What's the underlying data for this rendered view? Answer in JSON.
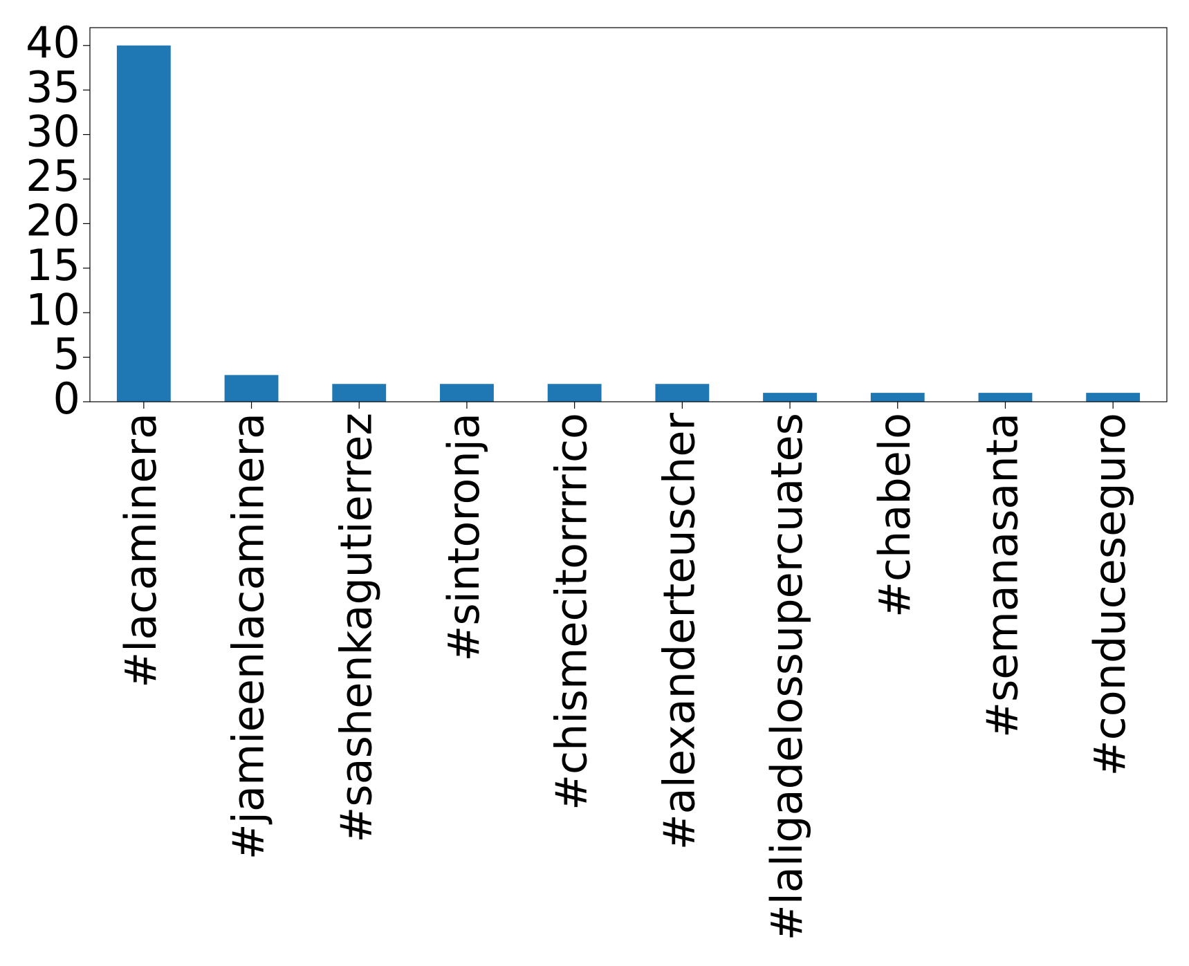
{
  "chart_data": {
    "type": "bar",
    "categories": [
      "#lacaminera",
      "#jamieenlacaminera",
      "#sashenkagutierrez",
      "#sintoronja",
      "#chismecitorrrrico",
      "#alexanderteuscher",
      "#laligadelossupercuates",
      "#chabelo",
      "#semanasanta",
      "#conduceseguro"
    ],
    "values": [
      40,
      3,
      2,
      2,
      2,
      2,
      1,
      1,
      1,
      1
    ],
    "color": "#1f77b4",
    "ylim": [
      0,
      42
    ],
    "yticks": [
      0,
      5,
      10,
      15,
      20,
      25,
      30,
      35,
      40
    ],
    "grid": false
  }
}
